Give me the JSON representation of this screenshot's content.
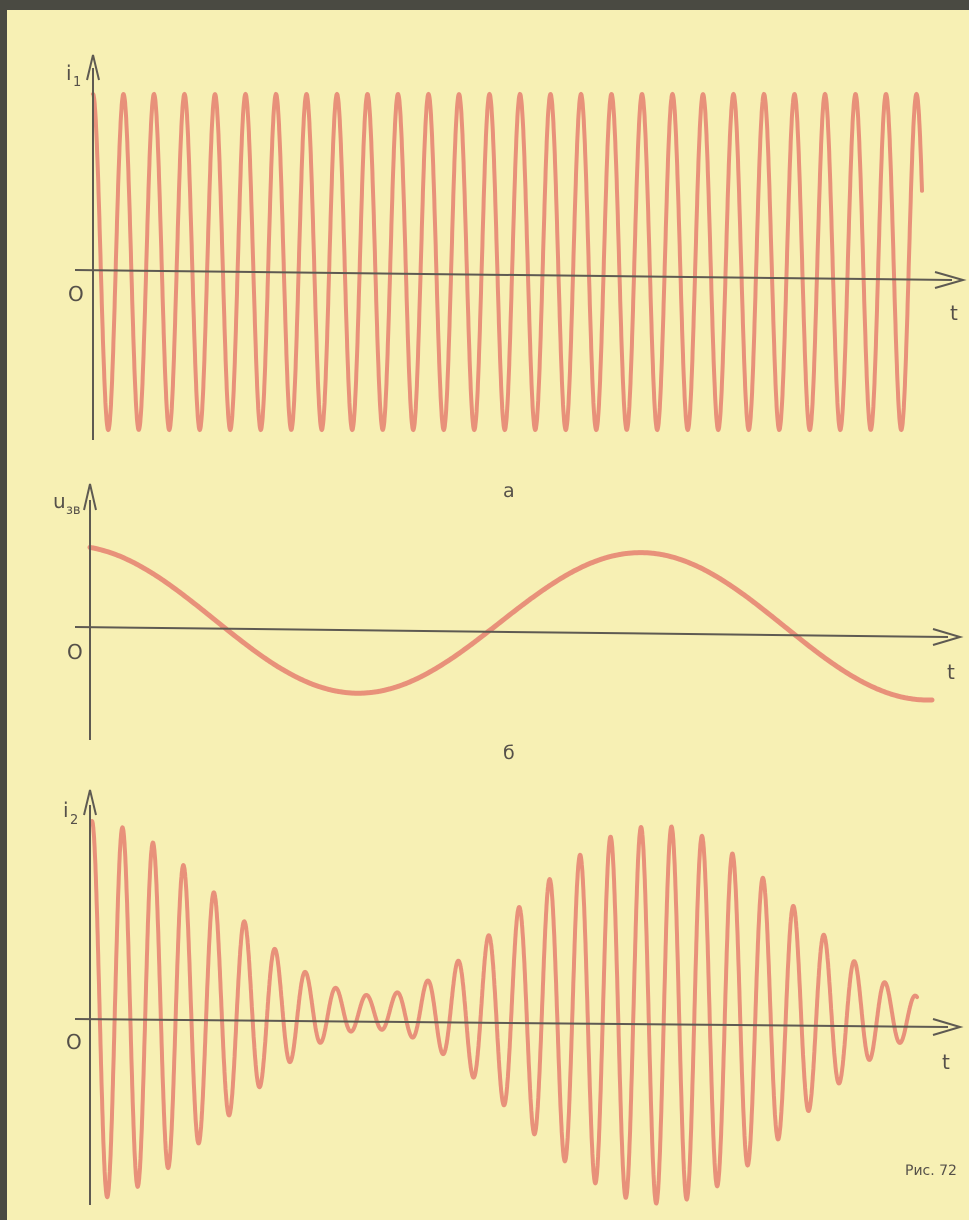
{
  "colors": {
    "page_border": "#4a4a42",
    "paper": "#f7f0b4",
    "axis": "#5e5a52",
    "wave": "#e8917a",
    "text": "#555049"
  },
  "panels": [
    {
      "id": "a",
      "y_label": "i",
      "y_label_sub": "1",
      "origin_label": "O",
      "x_label": "t",
      "caption": "а",
      "waveform": "constant-amplitude carrier oscillation"
    },
    {
      "id": "b",
      "y_label": "u",
      "y_label_sub": "зв",
      "origin_label": "O",
      "x_label": "t",
      "caption": "б",
      "waveform": "low-frequency sound signal"
    },
    {
      "id": "c",
      "y_label": "i",
      "y_label_sub": "2",
      "origin_label": "O",
      "x_label": "t",
      "caption": "",
      "waveform": "amplitude-modulated oscillation"
    }
  ],
  "figure_label": "Рис. 72"
}
